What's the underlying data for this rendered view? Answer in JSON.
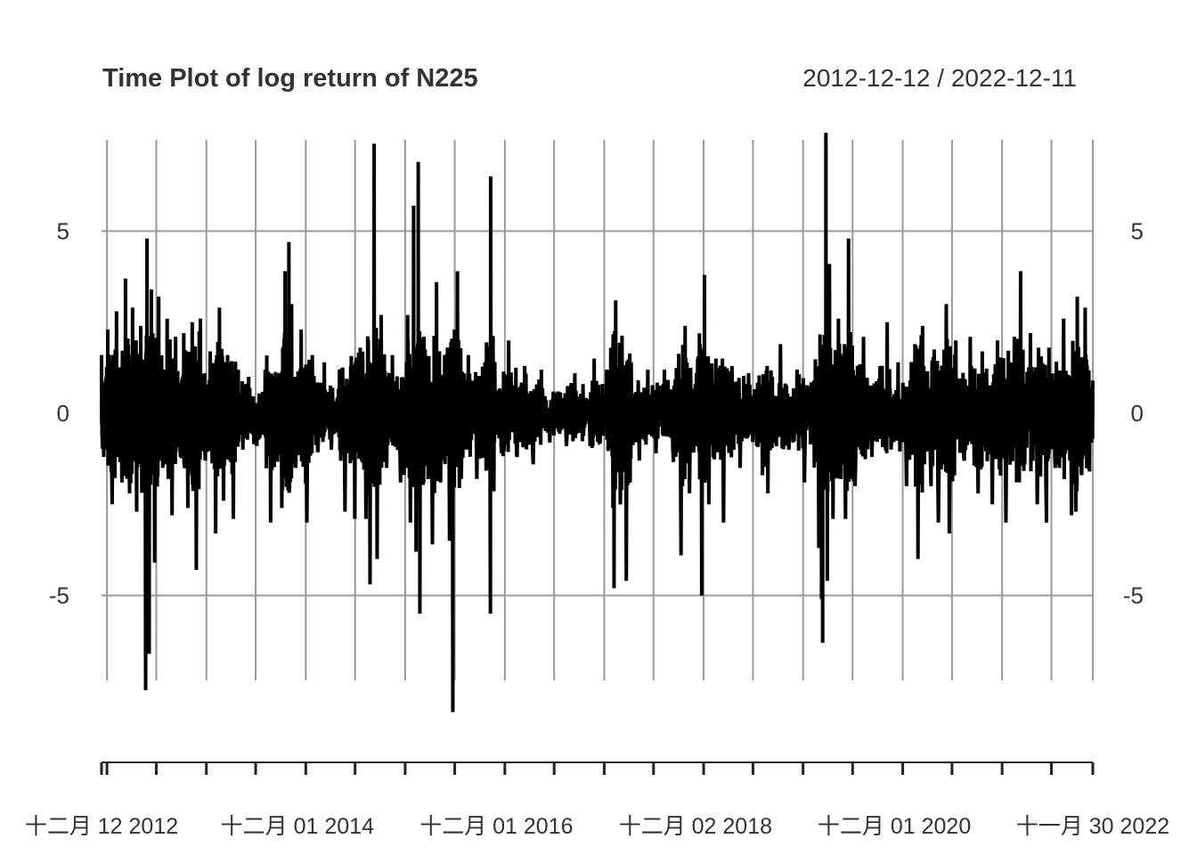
{
  "chart_data": {
    "type": "line",
    "title": "Time Plot of log return of N225",
    "date_range": "2012-12-12 / 2022-12-11",
    "xlabel": "",
    "ylabel": "",
    "ylim": [
      -8.8,
      7.8
    ],
    "yticks": [
      -5,
      0,
      5
    ],
    "ytick_labels": [
      "-5",
      "0",
      "5"
    ],
    "x_range": [
      "2012-12-12",
      "2022-11-30"
    ],
    "xtick_labels": [
      "十二月 12 2012",
      "十二月 01 2014",
      "十二月 01 2016",
      "十二月 02 2018",
      "十二月 01 2020",
      "十一月 30 2022"
    ],
    "xtick_label_dates": [
      "2012-12-12",
      "2014-12-01",
      "2016-12-01",
      "2018-12-02",
      "2020-12-01",
      "2022-11-30"
    ],
    "grid": true,
    "line_color": "#000000",
    "grid_color": "#999999",
    "series": [
      {
        "values_are_estimated_samples": true,
        "points": [
          [
            "2012-12-12",
            1.6
          ],
          [
            "2012-12-20",
            -1.2
          ],
          [
            "2013-01-04",
            2.3
          ],
          [
            "2013-01-20",
            -2.5
          ],
          [
            "2013-02-05",
            2.8
          ],
          [
            "2013-02-25",
            -1.9
          ],
          [
            "2013-03-10",
            3.7
          ],
          [
            "2013-03-25",
            -2.2
          ],
          [
            "2013-04-05",
            2.9
          ],
          [
            "2013-04-20",
            -2.7
          ],
          [
            "2013-05-05",
            2.4
          ],
          [
            "2013-05-23",
            -7.6
          ],
          [
            "2013-05-28",
            4.8
          ],
          [
            "2013-06-05",
            -6.6
          ],
          [
            "2013-06-13",
            3.4
          ],
          [
            "2013-06-25",
            -4.1
          ],
          [
            "2013-07-10",
            3.2
          ],
          [
            "2013-07-25",
            -1.5
          ],
          [
            "2013-08-10",
            2.6
          ],
          [
            "2013-08-28",
            -2.8
          ],
          [
            "2013-09-10",
            2.1
          ],
          [
            "2013-09-28",
            -1.2
          ],
          [
            "2013-10-10",
            2.2
          ],
          [
            "2013-10-25",
            -2.6
          ],
          [
            "2013-11-10",
            2.5
          ],
          [
            "2013-11-25",
            -4.3
          ],
          [
            "2013-12-10",
            2.6
          ],
          [
            "2013-12-28",
            -1.3
          ],
          [
            "2014-01-15",
            1.7
          ],
          [
            "2014-02-04",
            -3.3
          ],
          [
            "2014-02-18",
            2.9
          ],
          [
            "2014-03-05",
            -2.4
          ],
          [
            "2014-03-20",
            1.6
          ],
          [
            "2014-04-10",
            -2.9
          ],
          [
            "2014-04-28",
            1.2
          ],
          [
            "2014-05-15",
            -1.0
          ],
          [
            "2014-06-05",
            1.0
          ],
          [
            "2014-07-05",
            -0.9
          ],
          [
            "2014-08-05",
            1.2
          ],
          [
            "2014-08-25",
            -3.0
          ],
          [
            "2014-09-15",
            1.0
          ],
          [
            "2014-10-05",
            -2.6
          ],
          [
            "2014-10-17",
            3.9
          ],
          [
            "2014-10-31",
            4.7
          ],
          [
            "2014-11-10",
            3.0
          ],
          [
            "2014-11-25",
            -1.5
          ],
          [
            "2014-12-15",
            2.3
          ],
          [
            "2015-01-05",
            -3.0
          ],
          [
            "2015-01-25",
            1.6
          ],
          [
            "2015-02-15",
            -1.0
          ],
          [
            "2015-03-10",
            1.4
          ],
          [
            "2015-04-05",
            -1.0
          ],
          [
            "2015-05-05",
            1.2
          ],
          [
            "2015-05-25",
            -2.7
          ],
          [
            "2015-06-15",
            1.3
          ],
          [
            "2015-06-30",
            -2.9
          ],
          [
            "2015-07-20",
            1.8
          ],
          [
            "2015-08-10",
            -2.9
          ],
          [
            "2015-08-25",
            -4.7
          ],
          [
            "2015-09-09",
            7.4
          ],
          [
            "2015-09-20",
            -4.0
          ],
          [
            "2015-10-05",
            2.7
          ],
          [
            "2015-10-25",
            -1.5
          ],
          [
            "2015-11-15",
            1.6
          ],
          [
            "2015-12-15",
            -1.9
          ],
          [
            "2016-01-10",
            2.7
          ],
          [
            "2016-01-20",
            -3.0
          ],
          [
            "2016-02-01",
            5.7
          ],
          [
            "2016-02-10",
            -3.8
          ],
          [
            "2016-02-18",
            6.9
          ],
          [
            "2016-02-24",
            -5.5
          ],
          [
            "2016-03-10",
            2.1
          ],
          [
            "2016-04-10",
            -3.6
          ],
          [
            "2016-04-25",
            3.6
          ],
          [
            "2016-05-10",
            -1.9
          ],
          [
            "2016-05-25",
            1.6
          ],
          [
            "2016-06-12",
            -3.5
          ],
          [
            "2016-06-24",
            -8.2
          ],
          [
            "2016-06-30",
            2.3
          ],
          [
            "2016-07-11",
            3.9
          ],
          [
            "2016-07-25",
            -1.8
          ],
          [
            "2016-08-20",
            1.6
          ],
          [
            "2016-09-20",
            -1.8
          ],
          [
            "2016-10-20",
            1.4
          ],
          [
            "2016-11-09",
            -5.5
          ],
          [
            "2016-11-10",
            6.5
          ],
          [
            "2016-11-25",
            1.4
          ],
          [
            "2016-12-20",
            -1.1
          ],
          [
            "2017-01-15",
            2.0
          ],
          [
            "2017-02-15",
            -1.2
          ],
          [
            "2017-03-15",
            1.3
          ],
          [
            "2017-04-15",
            -1.4
          ],
          [
            "2017-05-15",
            1.2
          ],
          [
            "2017-06-15",
            -0.8
          ],
          [
            "2017-07-15",
            0.6
          ],
          [
            "2017-08-15",
            -0.9
          ],
          [
            "2017-09-15",
            1.1
          ],
          [
            "2017-10-15",
            0.8
          ],
          [
            "2017-11-10",
            -0.9
          ],
          [
            "2017-11-25",
            1.5
          ],
          [
            "2017-12-15",
            -0.8
          ],
          [
            "2018-01-10",
            1.2
          ],
          [
            "2018-01-25",
            1.8
          ],
          [
            "2018-02-02",
            -2.6
          ],
          [
            "2018-02-06",
            -4.8
          ],
          [
            "2018-02-12",
            3.1
          ],
          [
            "2018-03-01",
            -2.5
          ],
          [
            "2018-03-23",
            -4.6
          ],
          [
            "2018-04-10",
            1.4
          ],
          [
            "2018-05-10",
            -1.3
          ],
          [
            "2018-06-10",
            1.2
          ],
          [
            "2018-07-10",
            -1.1
          ],
          [
            "2018-08-10",
            1.2
          ],
          [
            "2018-09-10",
            -1.0
          ],
          [
            "2018-10-10",
            -3.9
          ],
          [
            "2018-10-25",
            2.4
          ],
          [
            "2018-11-10",
            -2.2
          ],
          [
            "2018-12-10",
            1.5
          ],
          [
            "2018-12-25",
            -5.0
          ],
          [
            "2018-12-26",
            0.9
          ],
          [
            "2019-01-04",
            3.8
          ],
          [
            "2019-01-20",
            -2.5
          ],
          [
            "2019-02-15",
            1.5
          ],
          [
            "2019-03-15",
            -3.0
          ],
          [
            "2019-04-15",
            1.3
          ],
          [
            "2019-05-15",
            -1.5
          ],
          [
            "2019-06-15",
            1.1
          ],
          [
            "2019-07-15",
            -0.9
          ],
          [
            "2019-08-05",
            -1.7
          ],
          [
            "2019-08-25",
            -2.2
          ],
          [
            "2019-09-10",
            1.0
          ],
          [
            "2019-10-10",
            1.9
          ],
          [
            "2019-11-10",
            -1.0
          ],
          [
            "2019-12-10",
            1.2
          ],
          [
            "2020-01-06",
            -1.9
          ],
          [
            "2020-02-10",
            0.9
          ],
          [
            "2020-02-28",
            -3.7
          ],
          [
            "2020-03-09",
            -5.1
          ],
          [
            "2020-03-13",
            -6.3
          ],
          [
            "2020-03-17",
            1.8
          ],
          [
            "2020-03-25",
            7.7
          ],
          [
            "2020-03-30",
            -4.6
          ],
          [
            "2020-04-07",
            4.1
          ],
          [
            "2020-04-20",
            -2.9
          ],
          [
            "2020-05-10",
            2.6
          ],
          [
            "2020-06-05",
            -2.9
          ],
          [
            "2020-06-16",
            4.8
          ],
          [
            "2020-07-10",
            -2.0
          ],
          [
            "2020-08-10",
            2.1
          ],
          [
            "2020-09-10",
            -1.2
          ],
          [
            "2020-10-10",
            1.3
          ],
          [
            "2020-11-05",
            2.5
          ],
          [
            "2020-11-20",
            -0.9
          ],
          [
            "2020-12-15",
            1.4
          ],
          [
            "2021-01-15",
            -2.0
          ],
          [
            "2021-02-15",
            1.9
          ],
          [
            "2021-02-26",
            -4.0
          ],
          [
            "2021-03-15",
            2.4
          ],
          [
            "2021-04-15",
            -2.0
          ],
          [
            "2021-05-12",
            -3.0
          ],
          [
            "2021-06-10",
            3.0
          ],
          [
            "2021-06-21",
            -3.3
          ],
          [
            "2021-07-15",
            2.0
          ],
          [
            "2021-08-15",
            -1.3
          ],
          [
            "2021-09-06",
            2.1
          ],
          [
            "2021-10-05",
            -2.2
          ],
          [
            "2021-10-20",
            1.7
          ],
          [
            "2021-11-26",
            -2.5
          ],
          [
            "2021-12-15",
            2.0
          ],
          [
            "2022-01-15",
            -3.0
          ],
          [
            "2022-02-15",
            2.1
          ],
          [
            "2022-03-10",
            3.9
          ],
          [
            "2022-03-25",
            -1.4
          ],
          [
            "2022-04-15",
            2.2
          ],
          [
            "2022-05-10",
            -2.5
          ],
          [
            "2022-06-13",
            -3.0
          ],
          [
            "2022-06-22",
            1.8
          ],
          [
            "2022-07-15",
            -1.5
          ],
          [
            "2022-08-15",
            2.6
          ],
          [
            "2022-09-13",
            -2.8
          ],
          [
            "2022-09-29",
            -2.7
          ],
          [
            "2022-10-04",
            3.2
          ],
          [
            "2022-10-20",
            -1.7
          ],
          [
            "2022-11-02",
            2.9
          ],
          [
            "2022-11-18",
            -1.6
          ],
          [
            "2022-11-30",
            0.9
          ]
        ]
      }
    ]
  }
}
